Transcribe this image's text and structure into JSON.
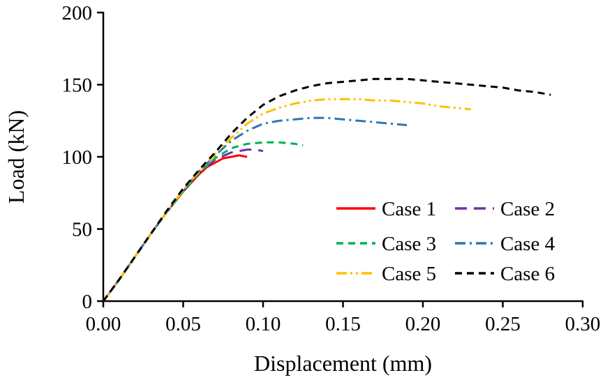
{
  "figure": {
    "background": "#ffffff",
    "axis_color": "#000000"
  },
  "chart_data": {
    "type": "line",
    "title": "",
    "xlabel": "Displacement (mm)",
    "ylabel": "Load (kN)",
    "xlim": [
      0,
      0.3
    ],
    "ylim": [
      0,
      200
    ],
    "x_ticks": [
      0,
      0.05,
      0.1,
      0.15,
      0.2,
      0.25,
      0.3
    ],
    "x_tick_labels": [
      "0.00",
      "0.05",
      "0.10",
      "0.15",
      "0.20",
      "0.25",
      "0.30"
    ],
    "y_ticks": [
      0,
      50,
      100,
      150,
      200
    ],
    "y_tick_labels": [
      "0",
      "50",
      "100",
      "150",
      "200"
    ],
    "grid": false,
    "legend_position": "inside-lower-right",
    "legend_columns": 2,
    "series": [
      {
        "name": "Case 1",
        "color": "#ff0000",
        "dash": "solid",
        "points": [
          [
            0,
            0
          ],
          [
            0.01,
            15
          ],
          [
            0.02,
            31
          ],
          [
            0.03,
            47
          ],
          [
            0.04,
            62
          ],
          [
            0.05,
            76
          ],
          [
            0.06,
            88
          ],
          [
            0.065,
            93
          ],
          [
            0.07,
            96
          ],
          [
            0.075,
            99
          ],
          [
            0.08,
            100
          ],
          [
            0.085,
            101
          ],
          [
            0.09,
            100
          ]
        ]
      },
      {
        "name": "Case 2",
        "color": "#7030a0",
        "dash": "longdash",
        "points": [
          [
            0,
            0
          ],
          [
            0.01,
            15
          ],
          [
            0.02,
            31
          ],
          [
            0.03,
            47
          ],
          [
            0.04,
            62
          ],
          [
            0.05,
            76
          ],
          [
            0.06,
            89
          ],
          [
            0.07,
            98
          ],
          [
            0.08,
            103
          ],
          [
            0.09,
            105
          ],
          [
            0.095,
            105
          ],
          [
            0.1,
            104
          ]
        ]
      },
      {
        "name": "Case 3",
        "color": "#00b050",
        "dash": "dash",
        "points": [
          [
            0,
            0
          ],
          [
            0.01,
            15
          ],
          [
            0.02,
            31
          ],
          [
            0.03,
            47
          ],
          [
            0.04,
            62
          ],
          [
            0.05,
            76
          ],
          [
            0.06,
            89
          ],
          [
            0.07,
            99
          ],
          [
            0.08,
            106
          ],
          [
            0.09,
            109
          ],
          [
            0.1,
            110
          ],
          [
            0.11,
            110
          ],
          [
            0.12,
            109
          ],
          [
            0.125,
            108
          ]
        ]
      },
      {
        "name": "Case 4",
        "color": "#2e75b6",
        "dash": "dashdot",
        "points": [
          [
            0,
            0
          ],
          [
            0.01,
            15
          ],
          [
            0.02,
            31
          ],
          [
            0.03,
            47
          ],
          [
            0.04,
            62
          ],
          [
            0.05,
            77
          ],
          [
            0.06,
            90
          ],
          [
            0.07,
            101
          ],
          [
            0.08,
            111
          ],
          [
            0.09,
            118
          ],
          [
            0.1,
            123
          ],
          [
            0.11,
            125
          ],
          [
            0.12,
            126
          ],
          [
            0.13,
            127
          ],
          [
            0.14,
            127
          ],
          [
            0.15,
            126
          ],
          [
            0.16,
            125
          ],
          [
            0.17,
            124
          ],
          [
            0.18,
            123
          ],
          [
            0.19,
            122
          ]
        ]
      },
      {
        "name": "Case 5",
        "color": "#ffc000",
        "dash": "dashdotdot",
        "points": [
          [
            0,
            0
          ],
          [
            0.01,
            15
          ],
          [
            0.02,
            31
          ],
          [
            0.03,
            47
          ],
          [
            0.04,
            62
          ],
          [
            0.05,
            77
          ],
          [
            0.06,
            90
          ],
          [
            0.07,
            102
          ],
          [
            0.08,
            113
          ],
          [
            0.09,
            123
          ],
          [
            0.1,
            130
          ],
          [
            0.11,
            134
          ],
          [
            0.12,
            137
          ],
          [
            0.13,
            139
          ],
          [
            0.14,
            140
          ],
          [
            0.15,
            140
          ],
          [
            0.16,
            140
          ],
          [
            0.17,
            139
          ],
          [
            0.18,
            139
          ],
          [
            0.19,
            138
          ],
          [
            0.2,
            137
          ],
          [
            0.21,
            135
          ],
          [
            0.22,
            134
          ],
          [
            0.23,
            133
          ]
        ]
      },
      {
        "name": "Case 6",
        "color": "#000000",
        "dash": "dash",
        "points": [
          [
            0,
            0
          ],
          [
            0.01,
            15
          ],
          [
            0.02,
            31
          ],
          [
            0.03,
            47
          ],
          [
            0.04,
            63
          ],
          [
            0.05,
            78
          ],
          [
            0.06,
            91
          ],
          [
            0.07,
            103
          ],
          [
            0.08,
            116
          ],
          [
            0.09,
            127
          ],
          [
            0.1,
            136
          ],
          [
            0.11,
            142
          ],
          [
            0.12,
            146
          ],
          [
            0.13,
            149
          ],
          [
            0.14,
            151
          ],
          [
            0.15,
            152
          ],
          [
            0.16,
            153
          ],
          [
            0.17,
            154
          ],
          [
            0.18,
            154
          ],
          [
            0.19,
            154
          ],
          [
            0.2,
            153
          ],
          [
            0.21,
            152
          ],
          [
            0.22,
            151
          ],
          [
            0.23,
            150
          ],
          [
            0.24,
            149
          ],
          [
            0.25,
            148
          ],
          [
            0.26,
            146
          ],
          [
            0.27,
            145
          ],
          [
            0.28,
            143
          ]
        ]
      }
    ]
  }
}
